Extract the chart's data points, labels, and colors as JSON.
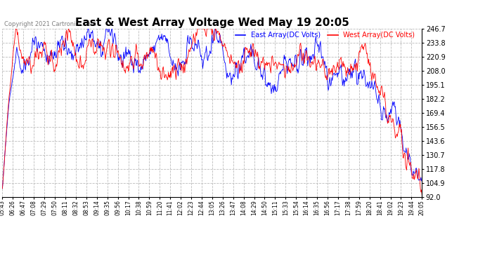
{
  "title": "East & West Array Voltage Wed May 19 20:05",
  "copyright": "Copyright 2021 Cartronics.com",
  "legend_east": "East Array(DC Volts)",
  "legend_west": "West Array(DC Volts)",
  "east_color": "blue",
  "west_color": "red",
  "bg_color": "white",
  "grid_color": "#bbbbbb",
  "ymin": 92.0,
  "ymax": 246.7,
  "yticks": [
    92.0,
    104.9,
    117.8,
    130.7,
    143.6,
    156.5,
    169.4,
    182.2,
    195.1,
    208.0,
    220.9,
    233.8,
    246.7
  ],
  "x_labels": [
    "05:43",
    "06:26",
    "06:47",
    "07:08",
    "07:29",
    "07:50",
    "08:11",
    "08:32",
    "08:53",
    "09:14",
    "09:35",
    "09:56",
    "10:17",
    "10:38",
    "10:59",
    "11:20",
    "11:41",
    "12:02",
    "12:23",
    "12:44",
    "13:05",
    "13:26",
    "13:47",
    "14:08",
    "14:29",
    "14:50",
    "15:11",
    "15:33",
    "15:54",
    "16:14",
    "16:35",
    "16:56",
    "17:17",
    "17:38",
    "17:59",
    "18:20",
    "18:41",
    "19:02",
    "19:23",
    "19:44",
    "20:05"
  ],
  "n_points": 820,
  "seed": 42,
  "figwidth": 6.9,
  "figheight": 3.75,
  "dpi": 100
}
